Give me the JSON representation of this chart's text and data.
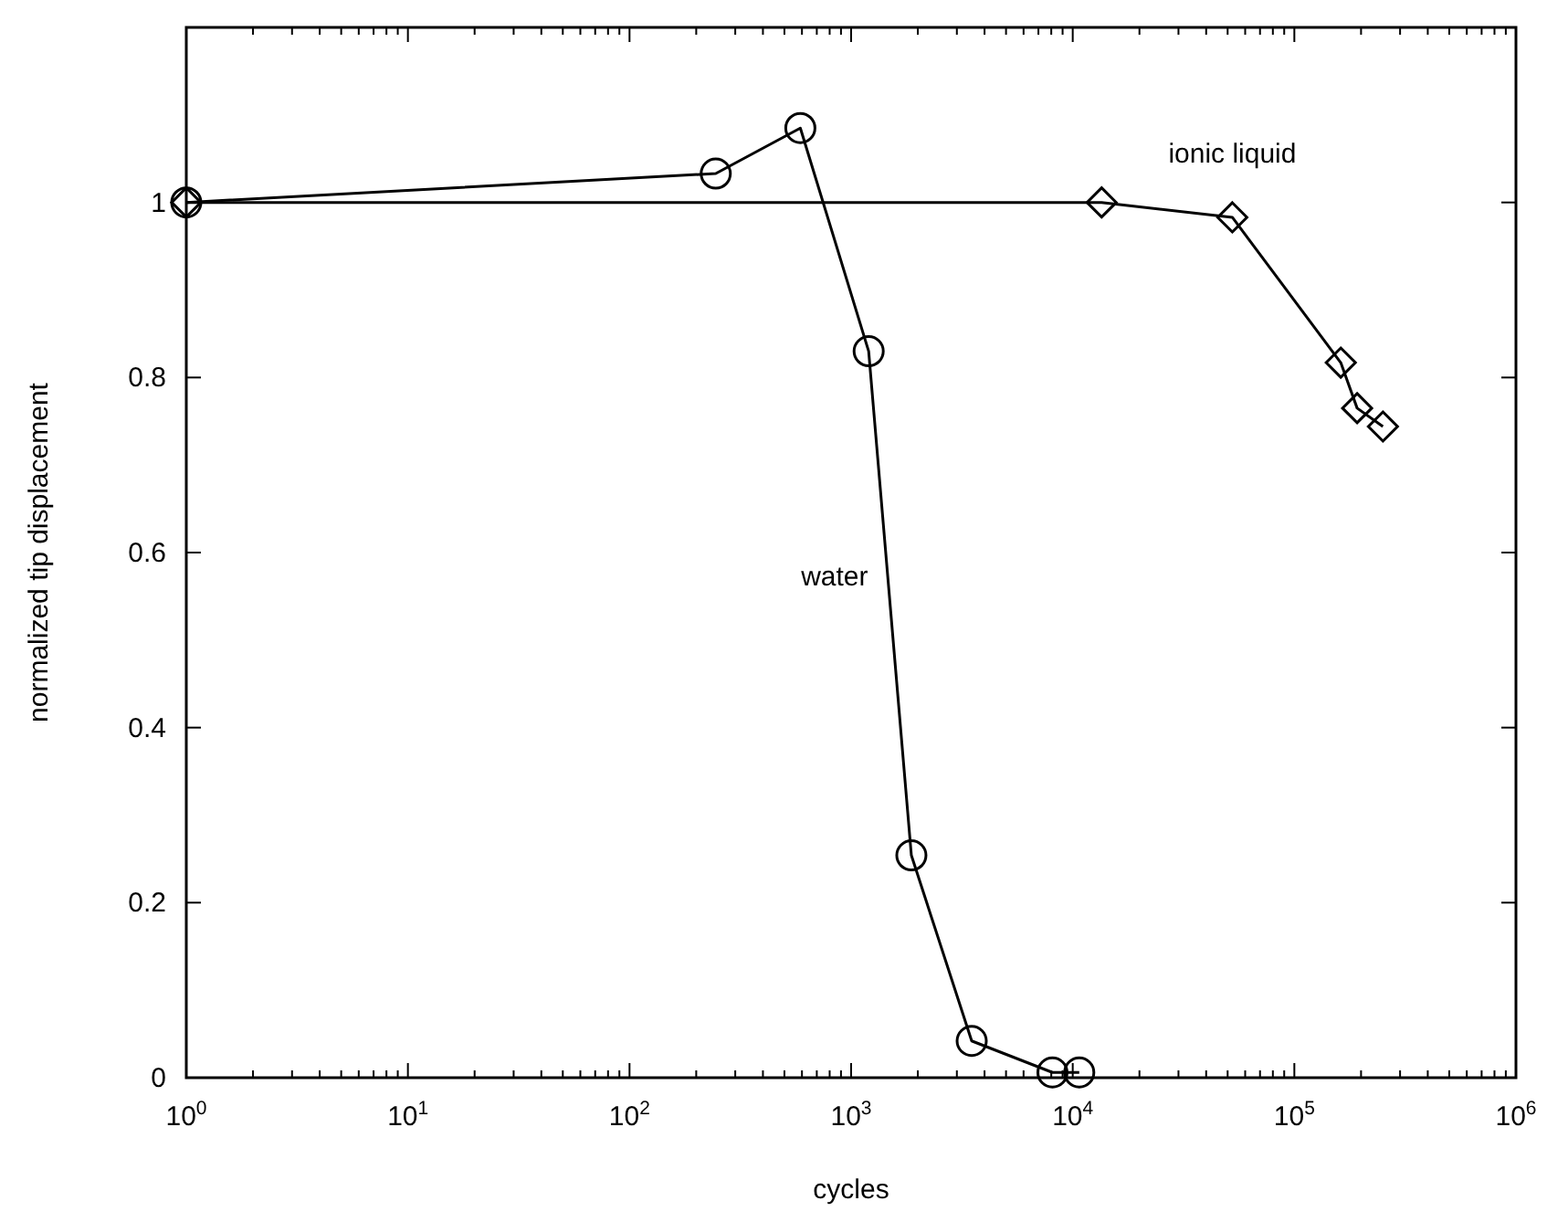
{
  "chart_data": {
    "type": "line",
    "xlabel": "cycles",
    "ylabel": "normalized tip displacement",
    "log": "x",
    "xlim": [
      1,
      1000000
    ],
    "xticks": [
      {
        "value": 1,
        "label": "10$^{0}$"
      },
      {
        "value": 10,
        "label": "10$^{1}$"
      },
      {
        "value": 100,
        "label": "10$^{2}$"
      },
      {
        "value": 1000,
        "label": "10$^{3}$"
      },
      {
        "value": 10000,
        "label": "10$^{4}$"
      },
      {
        "value": 100000,
        "label": "10$^{5}$"
      },
      {
        "value": 1000000,
        "label": "10$^{6}$"
      }
    ],
    "ylim": [
      0,
      1.2
    ],
    "yticks": [
      0,
      0.2,
      0.4,
      0.6,
      0.8,
      1
    ],
    "grid": false,
    "legend": false,
    "series": [
      {
        "name": "water",
        "color": "#000000",
        "marker": "circle",
        "x": [
          1,
          245,
          590,
          1200,
          1870,
          3500,
          8100,
          10700
        ],
        "values": [
          1,
          1.033,
          1.085,
          0.83,
          0.254,
          0.042,
          0.006,
          0.006
        ]
      },
      {
        "name": "ionic liquid",
        "color": "#000000",
        "marker": "diamond",
        "x": [
          1,
          13500,
          52500,
          162000,
          192000,
          251000
        ],
        "values": [
          1,
          1,
          0.983,
          0.817,
          0.765,
          0.744
        ]
      }
    ]
  }
}
